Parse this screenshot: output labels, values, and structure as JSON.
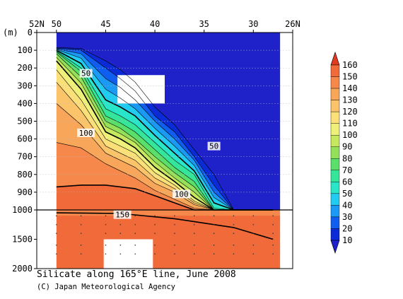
{
  "chart_data": {
    "type": "heatmap",
    "title": "Silicate along 165°E line, June 2008",
    "credit": "(C) Japan Meteorological Agency",
    "x_axis": {
      "ticks": [
        "52N",
        "50",
        "45",
        "40",
        "35",
        "30",
        "26N"
      ],
      "tick_values": [
        52,
        50,
        45,
        40,
        35,
        30,
        26
      ],
      "range": [
        52,
        26
      ]
    },
    "y_axis": {
      "unit_label": "(m)",
      "ticks": [
        "0",
        "100",
        "200",
        "300",
        "400",
        "500",
        "600",
        "700",
        "800",
        "900",
        "1000",
        "1500",
        "2000"
      ],
      "tick_values": [
        0,
        100,
        200,
        300,
        400,
        500,
        600,
        700,
        800,
        900,
        1000,
        1500,
        2000
      ],
      "upper_range": [
        0,
        1000
      ],
      "lower_range": [
        1000,
        2000
      ],
      "break_at": 1000
    },
    "contour_labels": [
      {
        "text": "50",
        "lat": 47.0,
        "depth": 230
      },
      {
        "text": "100",
        "lat": 47.0,
        "depth": 565
      },
      {
        "text": "50",
        "lat": 34.0,
        "depth": 640
      },
      {
        "text": "100",
        "lat": 37.3,
        "depth": 910
      },
      {
        "text": "150",
        "lat": 43.3,
        "depth": 1080
      }
    ],
    "contour_levels": [
      10,
      20,
      30,
      40,
      50,
      60,
      70,
      80,
      90,
      100,
      110,
      120,
      130,
      140,
      150,
      160
    ],
    "stations_lat": [
      50,
      47.5,
      45,
      43.5,
      42,
      40,
      38,
      36,
      34,
      32,
      30,
      28
    ],
    "isoline_depths": {
      "10": [
        85,
        90,
        160,
        210,
        280,
        420,
        520,
        660,
        800,
        1000,
        1000,
        1000
      ],
      "20": [
        88,
        100,
        200,
        260,
        330,
        470,
        560,
        700,
        860,
        1000,
        1000,
        1000
      ],
      "30": [
        92,
        120,
        260,
        310,
        380,
        500,
        600,
        720,
        900,
        1000,
        1000,
        1000
      ],
      "40": [
        95,
        145,
        320,
        370,
        430,
        540,
        640,
        750,
        930,
        1000,
        1000,
        1000
      ],
      "50": [
        100,
        175,
        380,
        420,
        470,
        580,
        680,
        780,
        960,
        1000,
        1000,
        1000
      ],
      "60": [
        105,
        200,
        430,
        470,
        520,
        620,
        720,
        800,
        990,
        1000,
        1000,
        1000
      ],
      "70": [
        110,
        220,
        470,
        510,
        560,
        660,
        760,
        840,
        1000,
        1000,
        1000,
        1000
      ],
      "80": [
        120,
        250,
        500,
        540,
        600,
        700,
        790,
        870,
        1000,
        1000,
        1000,
        1000
      ],
      "90": [
        140,
        285,
        530,
        570,
        620,
        730,
        820,
        900,
        1000,
        1000,
        1000,
        1000
      ],
      "100": [
        160,
        320,
        560,
        600,
        650,
        760,
        840,
        930,
        1000,
        1000,
        1000,
        1000
      ],
      "110": [
        210,
        380,
        600,
        640,
        680,
        790,
        860,
        950,
        1000,
        1000,
        1000,
        1000
      ],
      "120": [
        280,
        440,
        640,
        680,
        720,
        820,
        880,
        960,
        1000,
        1000,
        1000,
        1000
      ],
      "130": [
        400,
        520,
        680,
        720,
        760,
        850,
        900,
        970,
        1000,
        1000,
        1000,
        1000
      ],
      "140": [
        620,
        650,
        740,
        780,
        820,
        890,
        940,
        990,
        1000,
        1000,
        1000,
        1000
      ],
      "150": [
        870,
        860,
        860,
        870,
        880,
        920,
        960,
        1000,
        1000,
        1000,
        1000,
        1000
      ]
    },
    "colorbar": {
      "labels": [
        "10",
        "20",
        "30",
        "40",
        "50",
        "60",
        "70",
        "80",
        "90",
        "100",
        "110",
        "120",
        "130",
        "140",
        "150",
        "160"
      ],
      "values": [
        10,
        20,
        30,
        40,
        50,
        60,
        70,
        80,
        90,
        100,
        110,
        120,
        130,
        140,
        150,
        160
      ],
      "colors": [
        "#0a2bd6",
        "#0f5ef0",
        "#1a9af5",
        "#22ccf0",
        "#29e6c8",
        "#35e69a",
        "#5ae06a",
        "#94e05a",
        "#c6e85e",
        "#eef07a",
        "#fbe07a",
        "#fbc46a",
        "#f8a65a",
        "#f5884a",
        "#f06a3a",
        "#e84e2a"
      ],
      "under_color": "#1f22c8",
      "over_color": "#e03a20"
    },
    "missing_regions": [
      {
        "lat_from": 43.8,
        "lat_to": 39.0,
        "depth_from": 240,
        "depth_to": 400
      },
      {
        "lat_from": 45.2,
        "lat_to": 40.2,
        "depth_from": 1500,
        "depth_to": 2000
      }
    ]
  }
}
